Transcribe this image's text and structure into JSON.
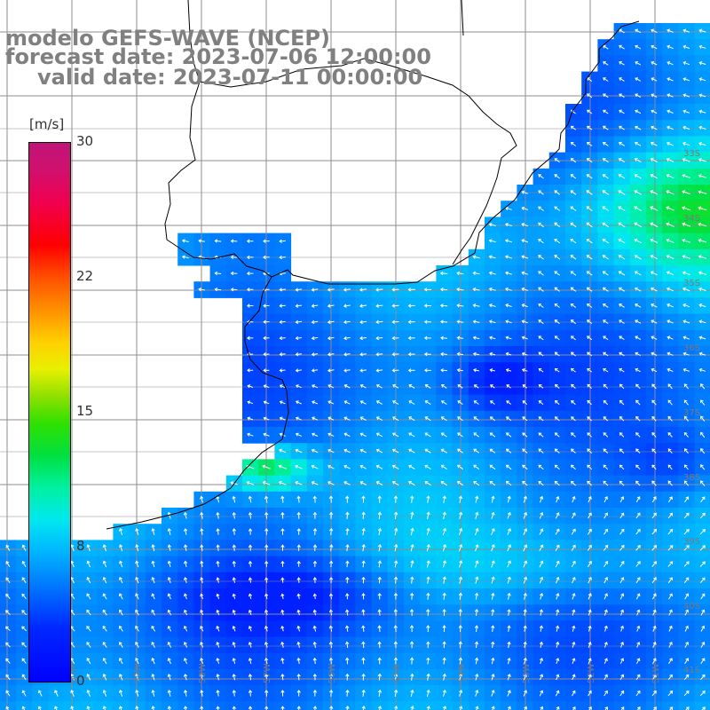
{
  "title": {
    "model": "modelo GEFS-WAVE (NCEP)",
    "forecast": "forecast date: 2023-07-06 12:00:00",
    "valid": "valid date: 2023-07-11 00:00:00"
  },
  "colorbar": {
    "unit": "[m/s]",
    "ticks": [
      "30",
      "22",
      "15",
      "8",
      "0"
    ],
    "min": 0,
    "max": 30,
    "colors": [
      "#0000ff",
      "#0070ff",
      "#00e8f0",
      "#00e040",
      "#e8f000",
      "#ff9000",
      "#ff0000",
      "#c01478"
    ]
  },
  "lat_labels": [
    "33S",
    "34S",
    "35S",
    "36S",
    "37S",
    "38S",
    "39S",
    "40S",
    "41S"
  ],
  "lon_labels": [
    "60W",
    "59W",
    "58W",
    "57W",
    "56W",
    "55W",
    "54W",
    "53W",
    "52W",
    "51W"
  ],
  "field": {
    "variable": "wind speed and direction",
    "units": "m/s",
    "range_shown": [
      0,
      14
    ]
  },
  "colors": {
    "land": "#ffffff",
    "coast": "#000000",
    "grid": "#8c8c8c",
    "arrows": "#ffffff",
    "text": "#808080"
  }
}
